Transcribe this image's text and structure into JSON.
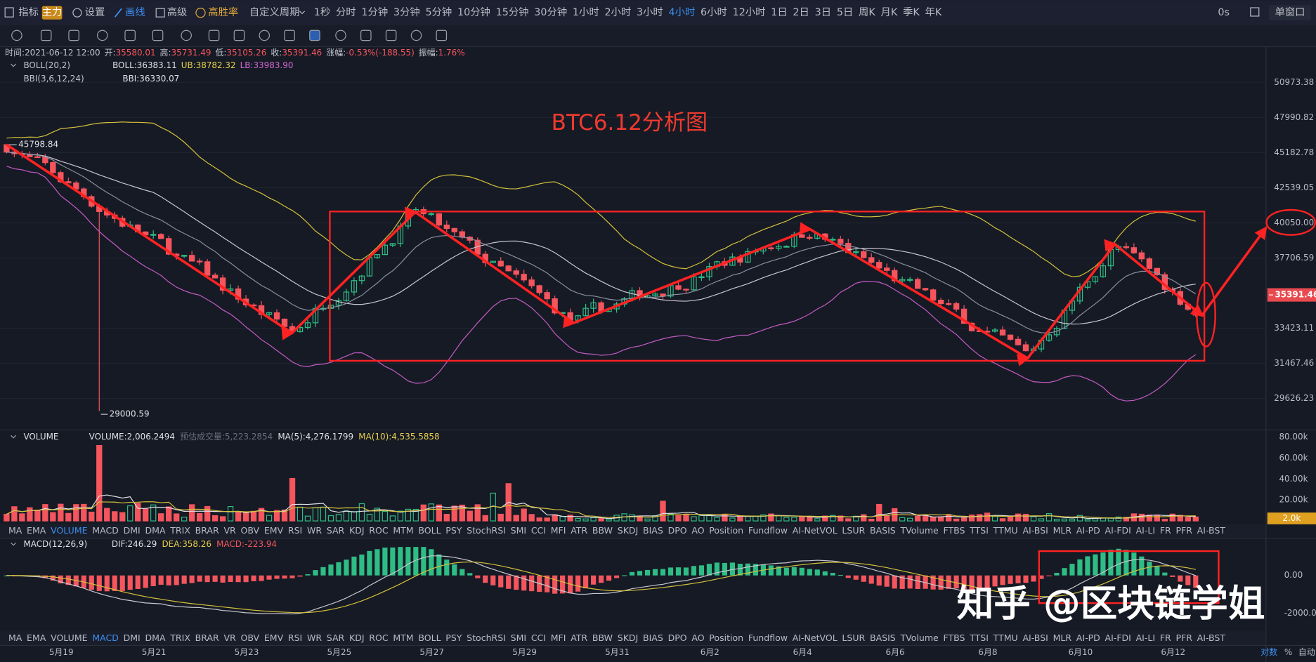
{
  "toolbar": {
    "indicator": "指标",
    "main": "主力",
    "settings": "设置",
    "draw": "画线",
    "advanced": "高级",
    "win_rate": "高胜率",
    "custom_period": "自定义周期",
    "periods": [
      "1秒",
      "分时",
      "1分钟",
      "3分钟",
      "5分钟",
      "10分钟",
      "15分钟",
      "30分钟",
      "1小时",
      "2小时",
      "3小时",
      "4小时",
      "6小时",
      "12小时",
      "1日",
      "2日",
      "3日",
      "5日",
      "周K",
      "月K",
      "季K",
      "年K"
    ],
    "active_period": 11,
    "timer": "0s",
    "window": "单窗口"
  },
  "info": [
    {
      "label": "时间:",
      "value": "2021-06-12 12:00"
    },
    {
      "label": "开:",
      "value": "35580.01"
    },
    {
      "label": "高:",
      "value": "35731.49"
    },
    {
      "label": "低:",
      "value": "35105.26"
    },
    {
      "label": "收:",
      "value": "35391.46"
    },
    {
      "label": "涨幅:",
      "value": "-0.53%(-188.55)"
    },
    {
      "label": "振幅:",
      "value": "1.76%"
    }
  ],
  "boll": {
    "name": "BOLL(20,2)",
    "mid": "BOLL:36383.11",
    "ub": "UB:38782.32",
    "lb": "LB:33983.90"
  },
  "bbi": {
    "name": "BBI(3,6,12,24)",
    "value": "BBI:36330.07"
  },
  "annotation_title": "BTC6.12分析图",
  "price_axis": {
    "log": true,
    "ticks": [
      50973.38,
      47990.82,
      45182.78,
      42539.05,
      {
        "value": 40050,
        "label": "40050.00"
      },
      37706.59,
      33423.11,
      31467.46,
      29626.23
    ],
    "current": 35391.46
  },
  "max_label": 45798.84,
  "min_label": 29000.59,
  "trend_points": {
    "x": [
      -0.59,
      2.49,
      3.82,
      5.53,
      8.08,
      10.43,
      11.37,
      12.31
    ],
    "price": [
      45800,
      33150,
      40800,
      33730,
      39620,
      31750,
      38610,
      34170
    ]
  },
  "volume": {
    "name": "VOLUME",
    "value": "VOLUME:2,006.2494",
    "estimate": "预估成交量:5,223.2854",
    "ma5": "MA(5):4,276.1799",
    "ma10": "MA(10):4,535.5858",
    "ticks": [
      {
        "value": 80000,
        "label": "80.00k"
      },
      {
        "value": 60000,
        "label": "60.00k"
      },
      {
        "value": 40000,
        "label": "40.00k"
      },
      {
        "value": 20000,
        "label": "20.00k"
      }
    ],
    "current": {
      "value": 2006.2494,
      "label": "2.0k"
    }
  },
  "tab_rows": [
    {
      "tabs": [
        "MA",
        "EMA",
        "VOLUME",
        "MACD",
        "DMI",
        "DMA",
        "TRIX",
        "BRAR",
        "VR",
        "OBV",
        "EMV",
        "RSI",
        "WR",
        "SAR",
        "KDJ",
        "ROC",
        "MTM",
        "BOLL",
        "PSY",
        "StochRSI",
        "SMI",
        "CCI",
        "MFI",
        "ATR",
        "BBW",
        "SKDJ",
        "BIAS",
        "DPO",
        "AO",
        "Position",
        "Fundflow",
        "AI-NetVOL",
        "LSUR",
        "BASIS",
        "TVolume",
        "FTBS",
        "TTSI",
        "TTMU",
        "AI-BSI",
        "MLR",
        "AI-PD",
        "AI-FDI",
        "AI-LI",
        "FR",
        "PFR",
        "AI-BST"
      ],
      "active": 2
    },
    {
      "tabs": [
        "MA",
        "EMA",
        "VOLUME",
        "MACD",
        "DMI",
        "DMA",
        "TRIX",
        "BRAR",
        "VR",
        "OBV",
        "EMV",
        "RSI",
        "WR",
        "SAR",
        "KDJ",
        "ROC",
        "MTM",
        "BOLL",
        "PSY",
        "StochRSI",
        "SMI",
        "CCI",
        "MFI",
        "ATR",
        "BBW",
        "SKDJ",
        "BIAS",
        "DPO",
        "AO",
        "Position",
        "Fundflow",
        "AI-NetVOL",
        "LSUR",
        "BASIS",
        "TVolume",
        "FTBS",
        "TTSI",
        "TTMU",
        "AI-BSI",
        "MLR",
        "AI-PD",
        "AI-FDI",
        "AI-LI",
        "FR",
        "PFR",
        "AI-BST"
      ],
      "active": 3
    }
  ],
  "macd": {
    "name": "MACD(12,26,9)",
    "dif": "DIF:246.29",
    "dea": "DEA:358.26",
    "macd": "MACD:-223.94",
    "ticks": [
      {
        "value": 0,
        "label": "0.00"
      },
      {
        "value": -2000,
        "label": "-2000.00"
      }
    ]
  },
  "x_axis": [
    "5月19",
    "5月21",
    "5月23",
    "5月25",
    "5月27",
    "5月29",
    "5月31",
    "6月2",
    "6月4",
    "6月6",
    "6月8",
    "6月10",
    "6月12"
  ],
  "bottom": {
    "log": "对数",
    "percent": "%",
    "auto": "自动"
  },
  "watermark": "知乎 @区块链学姐"
}
